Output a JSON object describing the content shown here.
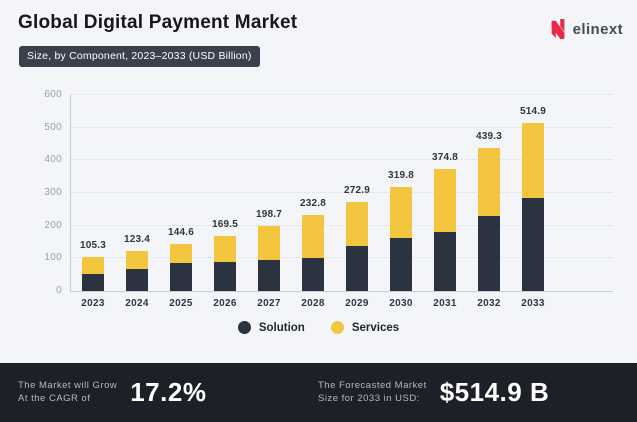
{
  "header": {
    "title": "Global Digital Payment Market",
    "subtitle_badge": "Size, by Component, 2023–2033 (USD Billion)",
    "brand_name": "elinext"
  },
  "chart_data": {
    "type": "bar",
    "stacked": true,
    "title": "Global Digital Payment Market",
    "subtitle": "Size, by Component, 2023–2033 (USD Billion)",
    "categories": [
      "2023",
      "2024",
      "2025",
      "2026",
      "2027",
      "2028",
      "2029",
      "2030",
      "2031",
      "2032",
      "2033"
    ],
    "series": [
      {
        "name": "Solution",
        "color": "#2c3340",
        "values_estimated": true,
        "values": [
          52,
          66,
          85,
          88,
          95,
          100,
          137,
          161,
          181,
          231,
          285
        ]
      },
      {
        "name": "Services",
        "color": "#f3c640",
        "values_estimated": true,
        "values": [
          53.3,
          57.4,
          59.6,
          81.5,
          103.7,
          132.8,
          135.9,
          158.8,
          193.8,
          208.3,
          229.9
        ]
      }
    ],
    "totals": [
      105.3,
      123.4,
      144.6,
      169.5,
      198.7,
      232.8,
      272.9,
      319.8,
      374.8,
      439.3,
      514.9
    ],
    "total_labels": [
      "105.3",
      "123.4",
      "144.6",
      "169.5",
      "198.7",
      "232.8",
      "272.9",
      "319.8",
      "374.8",
      "439.3",
      "514.9"
    ],
    "xlabel": "",
    "ylabel": "",
    "ylim": [
      0,
      600
    ],
    "y_ticks": [
      0,
      100,
      200,
      300,
      400,
      500,
      600
    ],
    "grid": "horizontal-dotted",
    "legend_position": "bottom"
  },
  "legend": {
    "items": [
      {
        "label": "Solution",
        "color": "#2c3340"
      },
      {
        "label": "Services",
        "color": "#f3c640"
      }
    ]
  },
  "footer": {
    "cagr": {
      "label_line1": "The Market will Grow",
      "label_line2": "At the CAGR of",
      "value": "17.2%"
    },
    "forecast": {
      "label_line1": "The Forecasted Market",
      "label_line2": "Size for 2033 in USD:",
      "value": "$514.9 B"
    }
  },
  "colors": {
    "background": "#f4f5f8",
    "badge_bg": "#3a414c",
    "footer_bg": "#1d2026",
    "brand_red": "#e8294a",
    "bar_solution": "#2c3340",
    "bar_services": "#f3c640",
    "axis_text": "#99a0ac",
    "label_text": "#2f3540"
  }
}
